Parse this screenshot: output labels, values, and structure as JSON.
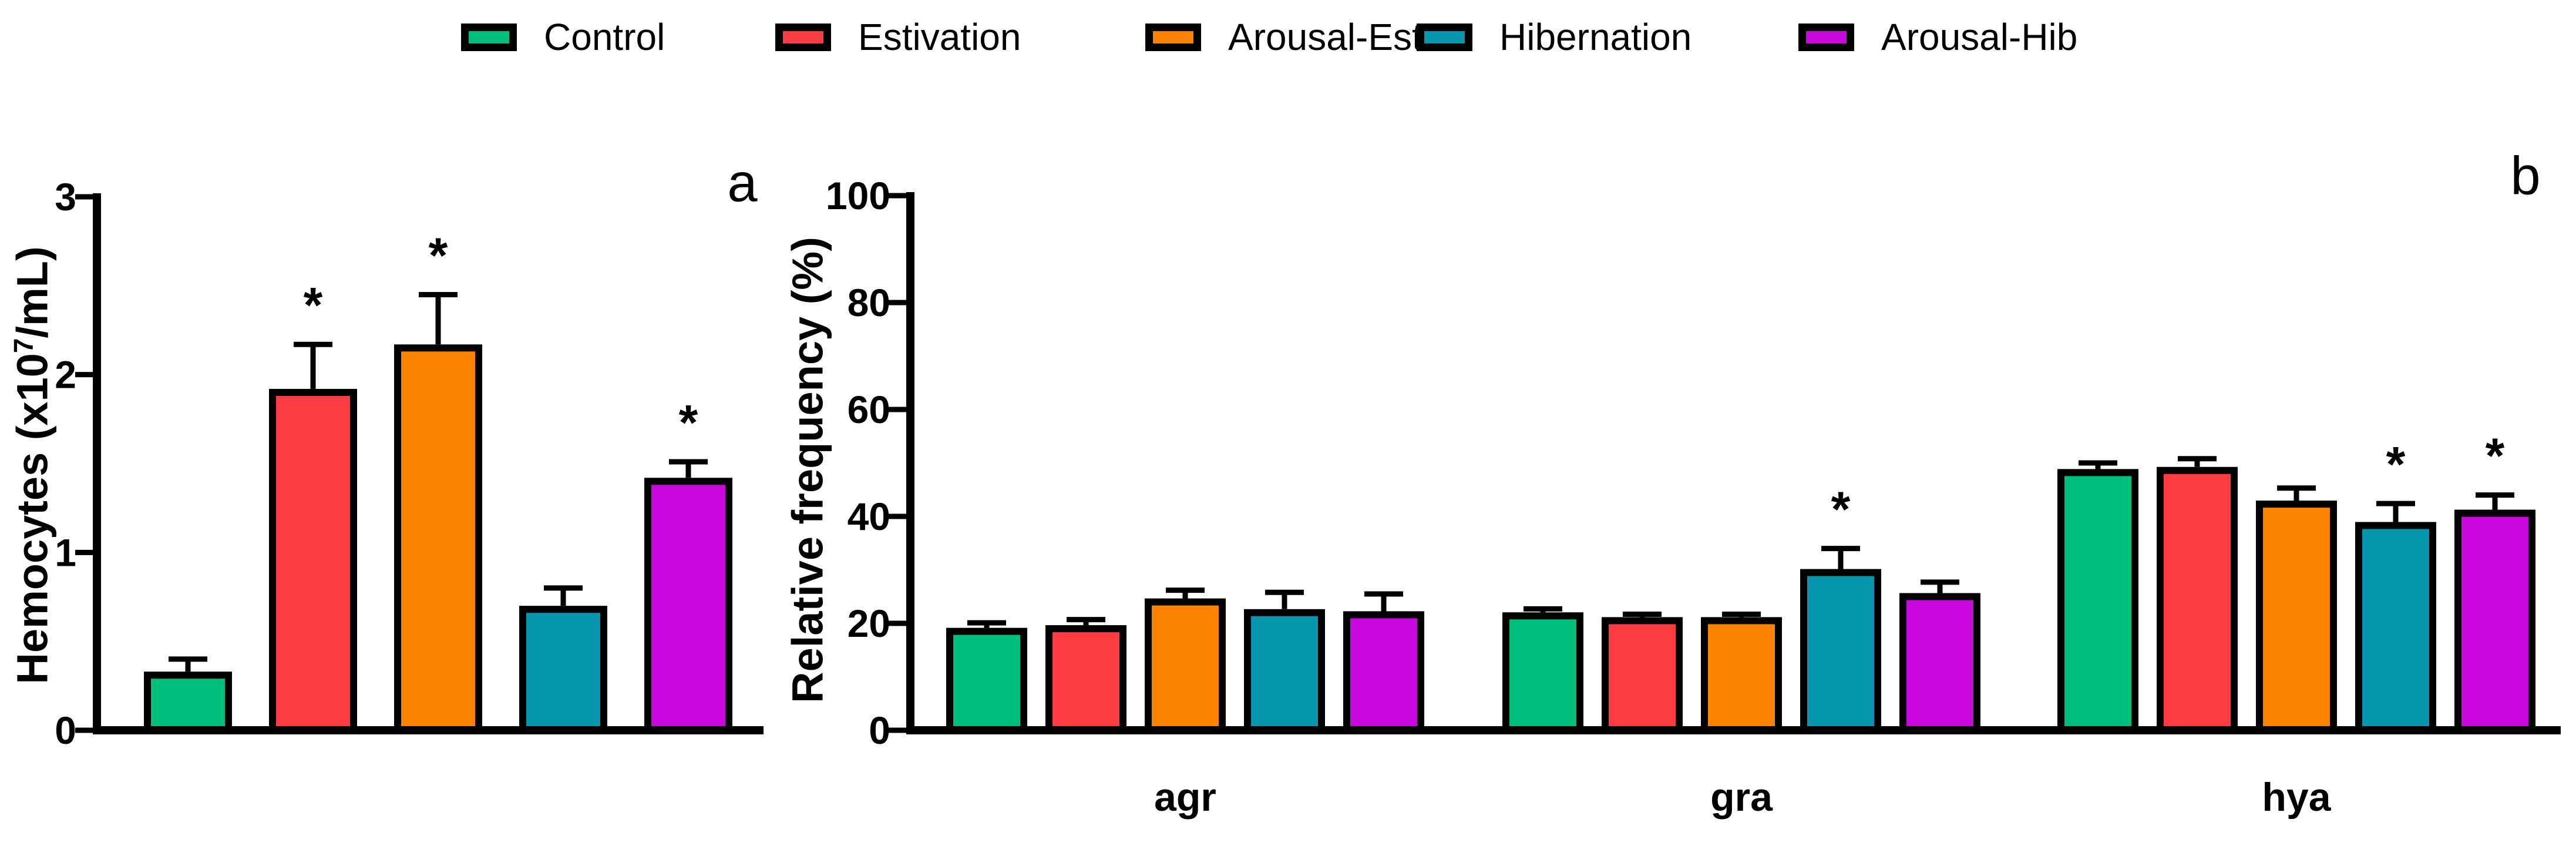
{
  "figure": {
    "background": "#FFFFFF",
    "significance_marker": "*"
  },
  "legend": {
    "position": "top-center",
    "items": [
      {
        "label": "Control",
        "color": "#00BE7B"
      },
      {
        "label": "Estivation",
        "color": "#FC3B42"
      },
      {
        "label": "Arousal-Est",
        "color": "#FB8300"
      },
      {
        "label": "Hibernation",
        "color": "#0697AF"
      },
      {
        "label": "Arousal-Hib",
        "color": "#C808DC"
      }
    ]
  },
  "chart_data": [
    {
      "type": "bar",
      "panel_label": "a",
      "ylabel": "Hemocytes (x10^7/mL)",
      "ylabel_parts": {
        "pre": "Hemocytes (x10",
        "sup": "7",
        "post": "/mL)"
      },
      "xlabel": "",
      "ylim": [
        0,
        3
      ],
      "yticks": [
        0,
        1,
        2,
        3
      ],
      "grid": false,
      "legend_position": "top",
      "categories": [
        ""
      ],
      "series": [
        {
          "name": "Control",
          "values": [
            0.31
          ],
          "errors": [
            0.09
          ],
          "significant": [
            false
          ]
        },
        {
          "name": "Estivation",
          "values": [
            1.9
          ],
          "errors": [
            0.27
          ],
          "significant": [
            true
          ]
        },
        {
          "name": "Arousal-Est",
          "values": [
            2.15
          ],
          "errors": [
            0.3
          ],
          "significant": [
            true
          ]
        },
        {
          "name": "Hibernation",
          "values": [
            0.68
          ],
          "errors": [
            0.12
          ],
          "significant": [
            false
          ]
        },
        {
          "name": "Arousal-Hib",
          "values": [
            1.4
          ],
          "errors": [
            0.11
          ],
          "significant": [
            true
          ]
        }
      ]
    },
    {
      "type": "bar",
      "panel_label": "b",
      "ylabel": "Relative frequency (%)",
      "xlabel": "",
      "ylim": [
        0,
        100
      ],
      "yticks": [
        0,
        20,
        40,
        60,
        80,
        100
      ],
      "grid": false,
      "legend_position": "top",
      "categories": [
        "agr",
        "gra",
        "hya"
      ],
      "series": [
        {
          "name": "Control",
          "values": [
            18.5,
            21.4,
            48.2
          ],
          "errors": [
            1.6,
            1.3,
            1.8
          ],
          "significant": [
            false,
            false,
            false
          ]
        },
        {
          "name": "Estivation",
          "values": [
            19.0,
            20.5,
            48.6
          ],
          "errors": [
            1.7,
            1.2,
            2.2
          ],
          "significant": [
            false,
            false,
            false
          ]
        },
        {
          "name": "Arousal-Est",
          "values": [
            24.0,
            20.5,
            42.3
          ],
          "errors": [
            2.2,
            1.2,
            3.0
          ],
          "significant": [
            false,
            false,
            false
          ]
        },
        {
          "name": "Hibernation",
          "values": [
            22.0,
            29.5,
            38.3
          ],
          "errors": [
            3.8,
            4.5,
            4.1
          ],
          "significant": [
            false,
            true,
            true
          ]
        },
        {
          "name": "Arousal-Hib",
          "values": [
            21.6,
            25.0,
            40.6
          ],
          "errors": [
            3.9,
            2.7,
            3.4
          ],
          "significant": [
            false,
            false,
            true
          ]
        }
      ]
    }
  ]
}
